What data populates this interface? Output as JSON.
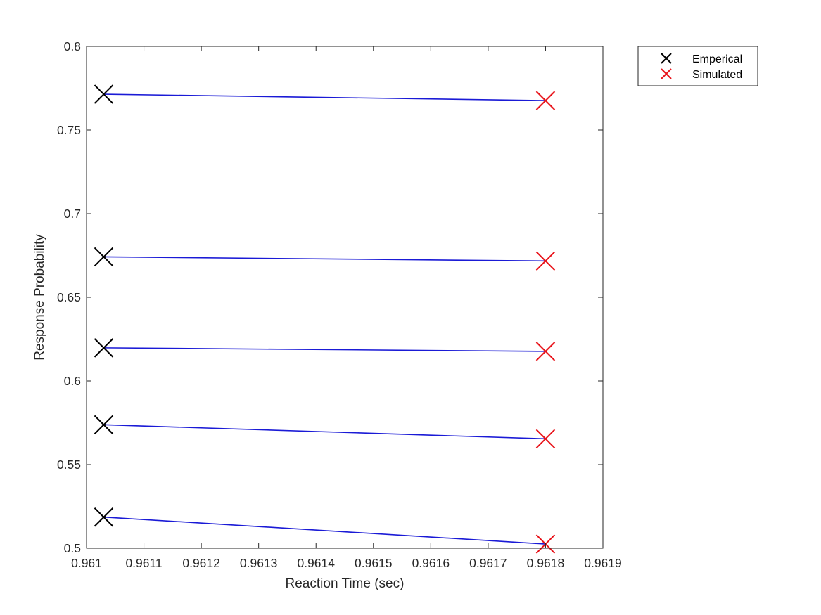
{
  "chart_data": {
    "type": "scatter",
    "title": "",
    "xlabel": "Reaction Time (sec)",
    "ylabel": "Response Probability",
    "xlim": [
      0.961,
      0.9619
    ],
    "ylim": [
      0.5,
      0.8
    ],
    "xticks": [
      0.961,
      0.9611,
      0.9612,
      0.9613,
      0.9614,
      0.9615,
      0.9616,
      0.9617,
      0.9618,
      0.9619
    ],
    "xtick_labels": [
      "0.961",
      "0.9611",
      "0.9612",
      "0.9613",
      "0.9614",
      "0.9615",
      "0.9616",
      "0.9617",
      "0.9618",
      "0.9619"
    ],
    "yticks": [
      0.5,
      0.55,
      0.6,
      0.65,
      0.7,
      0.75,
      0.8
    ],
    "ytick_labels": [
      "0.5",
      "0.55",
      "0.6",
      "0.65",
      "0.7",
      "0.75",
      "0.8"
    ],
    "grid": false,
    "legend_position": "outside-top-right",
    "series": [
      {
        "name": "Emperical",
        "marker": "x",
        "color": "#000000",
        "x": [
          0.96103,
          0.96103,
          0.96103,
          0.96103,
          0.96103
        ],
        "y": [
          0.5186,
          0.5738,
          0.6198,
          0.6742,
          0.7714
        ]
      },
      {
        "name": "Simulated",
        "marker": "x",
        "color": "#e8141b",
        "x": [
          0.9618,
          0.9618,
          0.9618,
          0.9618,
          0.9618
        ],
        "y": [
          0.5025,
          0.5654,
          0.6177,
          0.6717,
          0.7676
        ]
      }
    ],
    "connectors": {
      "color": "#1a1ad6",
      "pairs": [
        [
          0,
          0
        ],
        [
          1,
          1
        ],
        [
          2,
          2
        ],
        [
          3,
          3
        ],
        [
          4,
          4
        ]
      ]
    }
  }
}
